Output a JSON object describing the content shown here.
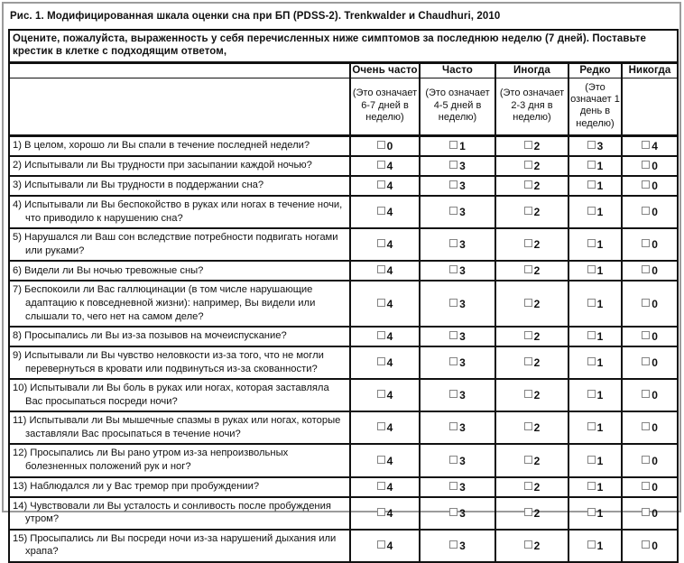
{
  "figure": {
    "title": "Рис. 1. Модифицированная шкала оценки сна при БП (PDSS-2). Trenkwalder и Chaudhuri, 2010"
  },
  "table": {
    "instruction": "Оцените, пожалуйста, выраженность у себя перечисленных ниже симптомов за последнюю неделю (7 дней). Поставьте крестик в клетке с подходящим ответом,",
    "checkbox_glyph": "□",
    "border_color": "#111111",
    "frame_color": "#9b9b9b",
    "columns": [
      {
        "label": "Очень часто",
        "note": "(Это означает 6-7 дней в неделю)"
      },
      {
        "label": "Часто",
        "note": "(Это означает 4-5 дней в неделю)"
      },
      {
        "label": "Иногда",
        "note": "(Это означает 2-3 дня в неделю)"
      },
      {
        "label": "Редко",
        "note": "(Это означает 1 день в неделю)"
      },
      {
        "label": "Никогда",
        "note": ""
      }
    ],
    "rows": [
      {
        "question": "1) В целом, хорошо ли Вы спали в течение последней недели?",
        "options": [
          "0",
          "1",
          "2",
          "3",
          "4"
        ]
      },
      {
        "question": "2) Испытывали ли Вы трудности при засыпании каждой ночью?",
        "options": [
          "4",
          "3",
          "2",
          "1",
          "0"
        ]
      },
      {
        "question": "3) Испытывали ли Вы трудности в поддержании сна?",
        "options": [
          "4",
          "3",
          "2",
          "1",
          "0"
        ]
      },
      {
        "question": "4) Испытывали ли Вы беспокойство в руках или ногах в течение ночи, что приводило к нарушению сна?",
        "options": [
          "4",
          "3",
          "2",
          "1",
          "0"
        ]
      },
      {
        "question": "5) Нарушался ли Ваш сон вследствие потребности подвигать ногами или руками?",
        "options": [
          "4",
          "3",
          "2",
          "1",
          "0"
        ]
      },
      {
        "question": "6) Видели ли Вы ночью тревожные сны?",
        "options": [
          "4",
          "3",
          "2",
          "1",
          "0"
        ]
      },
      {
        "question": "7) Беспокоили ли Вас галлюцинации (в том числе нарушающие адаптацию к повседневной жизни): например, Вы видели или слышали то, чего нет на самом деле?",
        "options": [
          "4",
          "3",
          "2",
          "1",
          "0"
        ]
      },
      {
        "question": "8) Просыпались ли Вы из-за позывов на мочеиспускание?",
        "options": [
          "4",
          "3",
          "2",
          "1",
          "0"
        ]
      },
      {
        "question": "9) Испытывали ли Вы чувство неловкости из-за того, что не могли перевернуться в кровати или подвинуться из-за скованности?",
        "options": [
          "4",
          "3",
          "2",
          "1",
          "0"
        ]
      },
      {
        "question": "10) Испытывали ли Вы боль в руках или ногах, которая заставляла Вас просыпаться посреди ночи?",
        "options": [
          "4",
          "3",
          "2",
          "1",
          "0"
        ]
      },
      {
        "question": "11) Испытывали ли Вы мышечные спазмы в руках или ногах, которые заставляли Вас просыпаться в течение ночи?",
        "options": [
          "4",
          "3",
          "2",
          "1",
          "0"
        ]
      },
      {
        "question": "12) Просыпались ли Вы рано утром из-за непроизвольных болезненных положений рук и ног?",
        "options": [
          "4",
          "3",
          "2",
          "1",
          "0"
        ]
      },
      {
        "question": "13) Наблюдался ли у Вас тремор при пробуждении?",
        "options": [
          "4",
          "3",
          "2",
          "1",
          "0"
        ]
      },
      {
        "question": "14) Чувствовали ли Вы усталость и сонливость после пробуждения утром?",
        "options": [
          "4",
          "3",
          "2",
          "1",
          "0"
        ]
      },
      {
        "question": "15) Просыпались ли Вы посреди ночи из-за нарушений дыхания или храпа?",
        "options": [
          "4",
          "3",
          "2",
          "1",
          "0"
        ]
      }
    ]
  }
}
